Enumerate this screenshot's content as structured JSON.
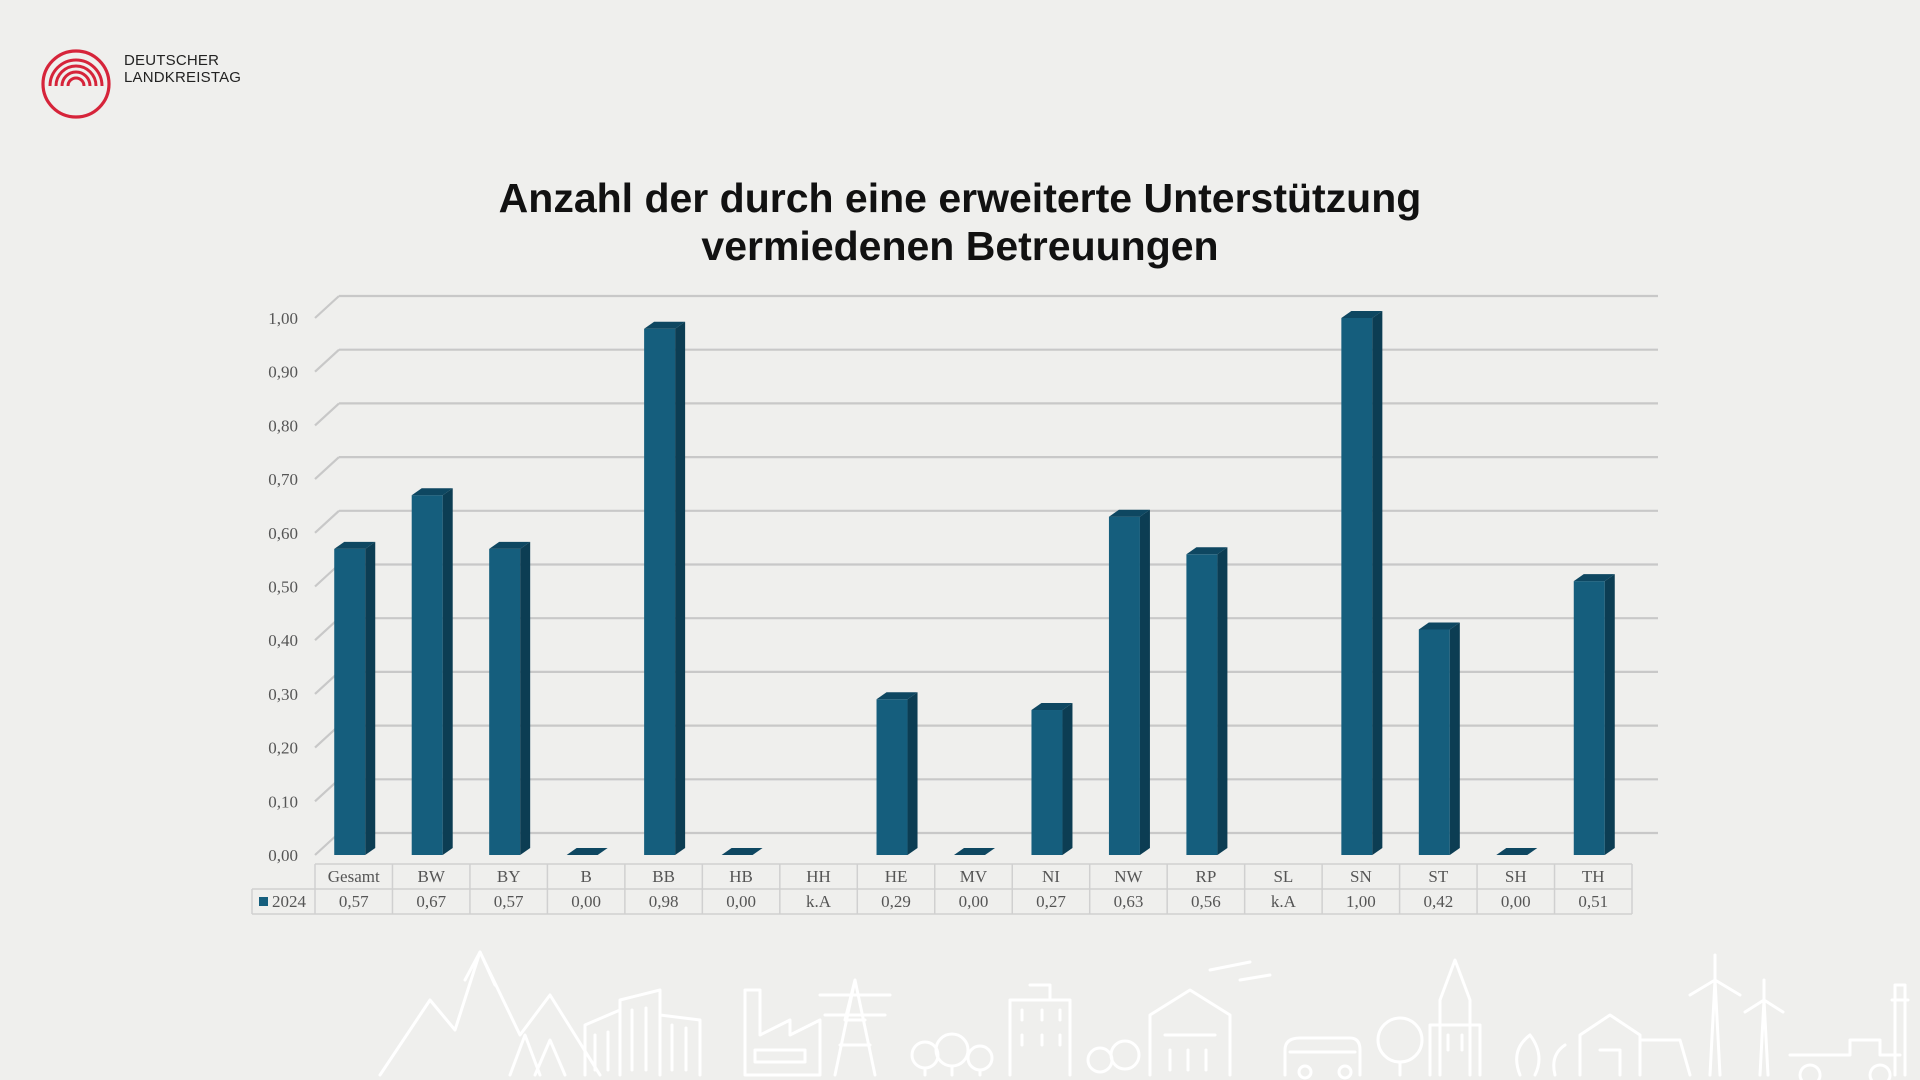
{
  "logo": {
    "line1": "DEUTSCHER",
    "line2": "LANDKREISTAG"
  },
  "title": {
    "line1": "Anzahl der durch eine erweiterte Unterstützung",
    "line2": "vermiedenen Betreuungen"
  },
  "colors": {
    "bar_front": "#155e7d",
    "bar_side": "#0c3d53",
    "bar_top": "#0e4761",
    "logo_red": "#d6243a",
    "background": "#efefed"
  },
  "chart_data": {
    "type": "bar",
    "title": "Anzahl der durch eine erweiterte Unterstützung vermiedenen Betreuungen",
    "categories": [
      "Gesamt",
      "BW",
      "BY",
      "B",
      "BB",
      "HB",
      "HH",
      "HE",
      "MV",
      "NI",
      "NW",
      "RP",
      "SL",
      "SN",
      "ST",
      "SH",
      "TH"
    ],
    "series": [
      {
        "name": "2024",
        "values": [
          0.57,
          0.67,
          0.57,
          0.0,
          0.98,
          0.0,
          null,
          0.29,
          0.0,
          0.27,
          0.63,
          0.56,
          null,
          1.0,
          0.42,
          0.0,
          0.51
        ]
      }
    ],
    "table_row_labels": [
      "0,57",
      "0,67",
      "0,57",
      "0,00",
      "0,98",
      "0,00",
      "k.A",
      "0,29",
      "0,00",
      "0,27",
      "0,63",
      "0,56",
      "k.A",
      "1,00",
      "0,42",
      "0,00",
      "0,51"
    ],
    "y_ticks": [
      "0,00",
      "0,10",
      "0,20",
      "0,30",
      "0,40",
      "0,50",
      "0,60",
      "0,70",
      "0,80",
      "0,90",
      "1,00"
    ],
    "ylim": [
      0,
      1.0
    ],
    "xlabel": "",
    "ylabel": "",
    "grid": true,
    "legend": "data-table-left"
  }
}
